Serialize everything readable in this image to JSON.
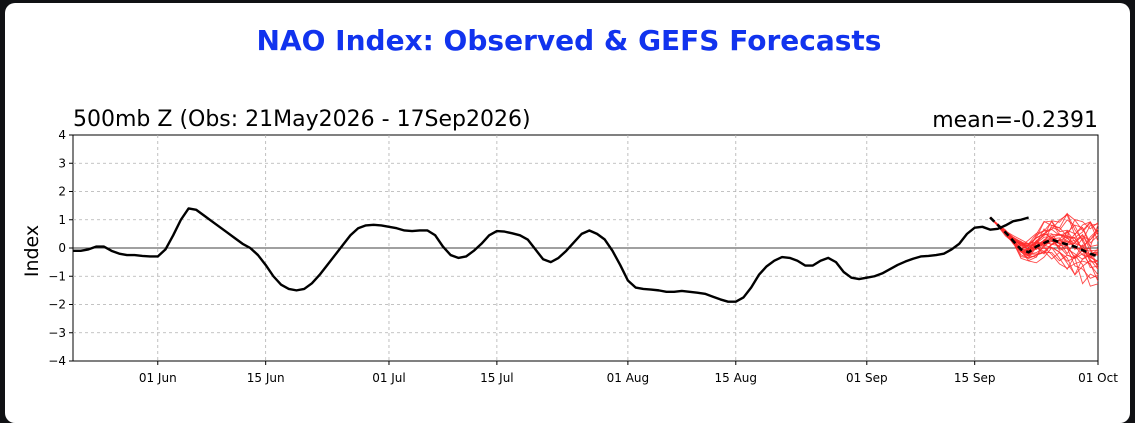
{
  "chart_data": {
    "type": "line",
    "title": "NAO Index: Observed & GEFS Forecasts",
    "subtitle_left": "500mb Z (Obs: 21May2026 - 17Sep2026)",
    "subtitle_right": "mean=-0.2391",
    "ylabel": "Index",
    "xlabel": "",
    "ylim": [
      -4,
      4
    ],
    "xlim": [
      "2026-05-21",
      "2026-10-01"
    ],
    "grid": true,
    "y_ticks": [
      "−4",
      "−3",
      "−2",
      "−1",
      "0",
      "1",
      "2",
      "3",
      "4"
    ],
    "x_ticks": [
      {
        "date": "2026-06-01",
        "label": "01 Jun"
      },
      {
        "date": "2026-06-15",
        "label": "15 Jun"
      },
      {
        "date": "2026-07-01",
        "label": "01 Jul"
      },
      {
        "date": "2026-07-15",
        "label": "15 Jul"
      },
      {
        "date": "2026-08-01",
        "label": "01 Aug"
      },
      {
        "date": "2026-08-15",
        "label": "15 Aug"
      },
      {
        "date": "2026-09-01",
        "label": "01 Sep"
      },
      {
        "date": "2026-09-15",
        "label": "15 Sep"
      },
      {
        "date": "2026-10-01",
        "label": "01 Oct"
      }
    ],
    "observed": {
      "color": "#000000",
      "start": "2026-05-21",
      "values": [
        -0.1,
        -0.1,
        -0.05,
        0.05,
        0.05,
        -0.1,
        -0.2,
        -0.25,
        -0.25,
        -0.28,
        -0.3,
        -0.3,
        -0.05,
        0.45,
        1.0,
        1.4,
        1.35,
        1.15,
        0.95,
        0.75,
        0.55,
        0.35,
        0.15,
        0.0,
        -0.25,
        -0.6,
        -1.0,
        -1.3,
        -1.45,
        -1.5,
        -1.45,
        -1.25,
        -0.95,
        -0.6,
        -0.25,
        0.1,
        0.45,
        0.7,
        0.8,
        0.82,
        0.8,
        0.75,
        0.7,
        0.62,
        0.6,
        0.62,
        0.62,
        0.45,
        0.05,
        -0.25,
        -0.35,
        -0.3,
        -0.1,
        0.15,
        0.45,
        0.6,
        0.58,
        0.52,
        0.45,
        0.3,
        -0.05,
        -0.4,
        -0.5,
        -0.35,
        -0.1,
        0.2,
        0.5,
        0.62,
        0.5,
        0.3,
        -0.1,
        -0.6,
        -1.15,
        -1.4,
        -1.45,
        -1.47,
        -1.5,
        -1.55,
        -1.55,
        -1.52,
        -1.55,
        -1.58,
        -1.62,
        -1.72,
        -1.82,
        -1.9,
        -1.9,
        -1.75,
        -1.4,
        -0.95,
        -0.65,
        -0.45,
        -0.32,
        -0.35,
        -0.45,
        -0.62,
        -0.62,
        -0.45,
        -0.35,
        -0.5,
        -0.85,
        -1.05,
        -1.1,
        -1.05,
        -1.0,
        -0.9,
        -0.75,
        -0.6,
        -0.48,
        -0.38,
        -0.3,
        -0.28,
        -0.25,
        -0.2,
        -0.05,
        0.15,
        0.5,
        0.72,
        0.75,
        0.65,
        0.68,
        0.8,
        0.95,
        1.0,
        1.08
      ]
    },
    "ensemble_mean": {
      "color": "#000000",
      "style": "dashed",
      "x": [
        "2026-09-17",
        "2026-09-19",
        "2026-09-21",
        "2026-09-22",
        "2026-09-23",
        "2026-09-25",
        "2026-09-26",
        "2026-09-28",
        "2026-09-30",
        "2026-10-01"
      ],
      "values": [
        1.08,
        0.55,
        -0.05,
        -0.15,
        0.05,
        0.3,
        0.2,
        0.05,
        -0.2,
        -0.3
      ]
    },
    "members": {
      "color": "#ff2a2a",
      "count": 31,
      "start": "2026-09-17",
      "end": "2026-10-01",
      "spread_min": -1.7,
      "spread_max": 1.85
    }
  }
}
